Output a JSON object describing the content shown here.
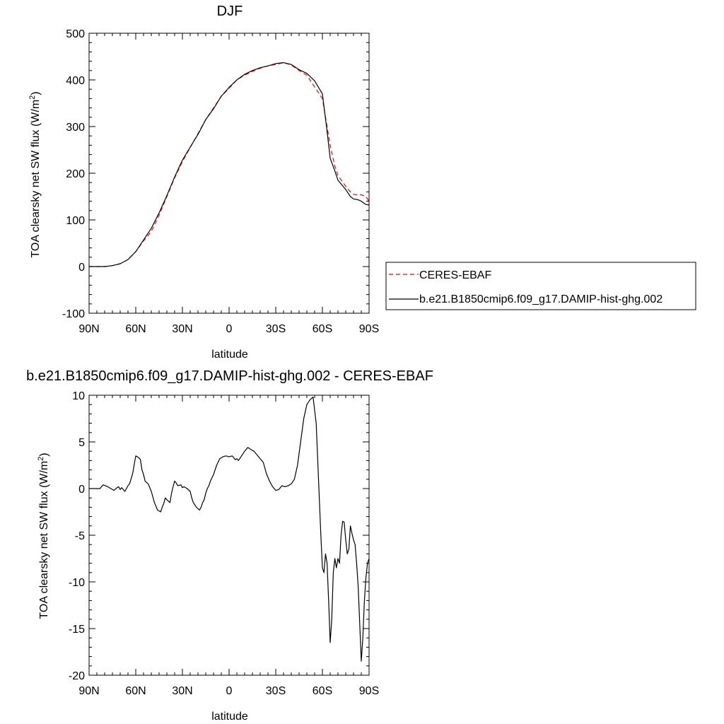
{
  "chart_data": [
    {
      "type": "line",
      "title": "DJF",
      "xlabel": "latitude",
      "ylabel": "TOA clearsky net SW flux (W/m",
      "ylabel_sup": "2",
      "ylabel_end": ")",
      "xlim": [
        90,
        -90
      ],
      "ylim": [
        -100,
        500
      ],
      "x_ticks": [
        {
          "value": 90,
          "label": "90N"
        },
        {
          "value": 60,
          "label": "60N"
        },
        {
          "value": 30,
          "label": "30N"
        },
        {
          "value": 0,
          "label": "0"
        },
        {
          "value": -30,
          "label": "30S"
        },
        {
          "value": -60,
          "label": "60S"
        },
        {
          "value": -90,
          "label": "90S"
        }
      ],
      "y_ticks": [
        {
          "value": -100,
          "label": "-100"
        },
        {
          "value": 0,
          "label": "0"
        },
        {
          "value": 100,
          "label": "100"
        },
        {
          "value": 200,
          "label": "200"
        },
        {
          "value": 300,
          "label": "300"
        },
        {
          "value": 400,
          "label": "400"
        },
        {
          "value": 500,
          "label": "500"
        }
      ],
      "grid": false,
      "legend_placement": "right",
      "series": [
        {
          "name": "CERES-EBAF",
          "color": "#ff0000",
          "dash": "dashed",
          "x": [
            90,
            85,
            80,
            75,
            70,
            65,
            60,
            55,
            50,
            45,
            40,
            35,
            30,
            25,
            20,
            15,
            10,
            5,
            0,
            -5,
            -10,
            -15,
            -20,
            -25,
            -30,
            -35,
            -40,
            -45,
            -50,
            -55,
            -60,
            -63,
            -65,
            -68,
            -70,
            -75,
            -78,
            -80,
            -83,
            -85,
            -88,
            -90
          ],
          "y": [
            0,
            0,
            0,
            2,
            6,
            15,
            32,
            55,
            75,
            110,
            150,
            190,
            225,
            255,
            285,
            315,
            340,
            365,
            382,
            400,
            410,
            418,
            425,
            430,
            433,
            437,
            432,
            420,
            410,
            385,
            360,
            300,
            260,
            215,
            195,
            172,
            160,
            155,
            153,
            154,
            150,
            140
          ]
        },
        {
          "name": "b.e21.B1850cmip6.f09_g17.DAMIP-hist-ghg.002",
          "color": "#000000",
          "dash": "solid",
          "x": [
            90,
            85,
            80,
            75,
            70,
            65,
            60,
            55,
            50,
            45,
            40,
            35,
            30,
            25,
            20,
            15,
            10,
            5,
            0,
            -5,
            -10,
            -15,
            -20,
            -25,
            -30,
            -35,
            -40,
            -45,
            -50,
            -55,
            -60,
            -63,
            -65,
            -68,
            -70,
            -75,
            -78,
            -80,
            -83,
            -85,
            -88,
            -90
          ],
          "y": [
            0,
            0,
            0,
            2,
            6,
            15,
            32,
            57,
            82,
            115,
            152,
            192,
            228,
            256,
            283,
            315,
            338,
            365,
            384,
            400,
            412,
            420,
            426,
            430,
            435,
            437,
            433,
            422,
            414,
            398,
            370,
            290,
            232,
            205,
            185,
            165,
            150,
            145,
            143,
            140,
            133,
            132
          ]
        }
      ]
    },
    {
      "type": "line",
      "title": "b.e21.B1850cmip6.f09_g17.DAMIP-hist-ghg.002 - CERES-EBAF",
      "xlabel": "latitude",
      "ylabel": "TOA clearsky net SW flux (W/m",
      "ylabel_sup": "2",
      "ylabel_end": ")",
      "xlim": [
        90,
        -90
      ],
      "ylim": [
        -20,
        10
      ],
      "x_ticks": [
        {
          "value": 90,
          "label": "90N"
        },
        {
          "value": 60,
          "label": "60N"
        },
        {
          "value": 30,
          "label": "30N"
        },
        {
          "value": 0,
          "label": "0"
        },
        {
          "value": -30,
          "label": "30S"
        },
        {
          "value": -60,
          "label": "60S"
        },
        {
          "value": -90,
          "label": "90S"
        }
      ],
      "y_ticks": [
        {
          "value": -20,
          "label": "-20"
        },
        {
          "value": -15,
          "label": "-15"
        },
        {
          "value": -10,
          "label": "-10"
        },
        {
          "value": -5,
          "label": "-5"
        },
        {
          "value": 0,
          "label": "0"
        },
        {
          "value": 5,
          "label": "5"
        },
        {
          "value": 10,
          "label": "10"
        }
      ],
      "grid": false,
      "series": [
        {
          "color": "#000000",
          "dash": "solid",
          "x": [
            90,
            85,
            83,
            81,
            78,
            76,
            74,
            72,
            71,
            70,
            69,
            67,
            65,
            64,
            62,
            60,
            58,
            57,
            56,
            55,
            54,
            52,
            50,
            48,
            46,
            44,
            43,
            42,
            41,
            40,
            38,
            37,
            36,
            35,
            34,
            33,
            31,
            30,
            29,
            27,
            25,
            24,
            23,
            21,
            19,
            18,
            17,
            16,
            15,
            14,
            13,
            12,
            10,
            8,
            6,
            4,
            2,
            0,
            -2,
            -4,
            -5,
            -6,
            -8,
            -10,
            -12,
            -13,
            -14,
            -16,
            -18,
            -20,
            -22,
            -24,
            -26,
            -28,
            -30,
            -32,
            -34,
            -36,
            -38,
            -40,
            -42,
            -44,
            -46,
            -48,
            -50,
            -52,
            -54,
            -56,
            -57,
            -58,
            -59,
            -60,
            -61,
            -62,
            -63,
            -64,
            -65,
            -66,
            -67,
            -68,
            -69,
            -70,
            -71,
            -72,
            -73,
            -74,
            -75,
            -76,
            -77,
            -78,
            -79,
            -80,
            -81,
            -82,
            -83,
            -84,
            -85,
            -86,
            -87,
            -88,
            -89,
            -90
          ],
          "y": [
            0,
            0,
            0,
            0.4,
            0.2,
            0,
            -0.2,
            0.1,
            0.2,
            -0.1,
            0.1,
            -0.3,
            0.3,
            0.5,
            1.6,
            3.5,
            3.3,
            3.1,
            2,
            1.5,
            0.8,
            0.5,
            -0.3,
            -1.5,
            -2.3,
            -2.5,
            -2,
            -1.6,
            -1,
            -1.2,
            -1.5,
            -0.5,
            0.2,
            0.8,
            0.6,
            0.3,
            0.4,
            0.1,
            0.2,
            0,
            -0.3,
            -1,
            -1.5,
            -2,
            -2.3,
            -2,
            -1.5,
            -1.2,
            -0.5,
            0,
            0.3,
            0.8,
            1.5,
            2.5,
            3.2,
            3.4,
            3.5,
            3.4,
            3.5,
            3.1,
            3.2,
            3.0,
            3.5,
            4.0,
            4.4,
            4.3,
            4.2,
            4.0,
            3.6,
            3.2,
            2.8,
            1.6,
            0.8,
            0.2,
            -0.2,
            -0.1,
            0.3,
            0.2,
            0.3,
            0.5,
            1.0,
            2.5,
            5.0,
            7.5,
            9,
            9.5,
            9.8,
            7,
            3,
            -1,
            -5,
            -8.5,
            -9,
            -7,
            -8,
            -12,
            -16.5,
            -14,
            -9,
            -7.5,
            -8.5,
            -7.5,
            -8,
            -5,
            -3.5,
            -3.6,
            -5.5,
            -7,
            -6.5,
            -4,
            -4.8,
            -5.5,
            -6,
            -8,
            -10.5,
            -14.5,
            -18.5,
            -16,
            -12,
            -9.5,
            -8,
            -7.5
          ]
        }
      ]
    }
  ]
}
